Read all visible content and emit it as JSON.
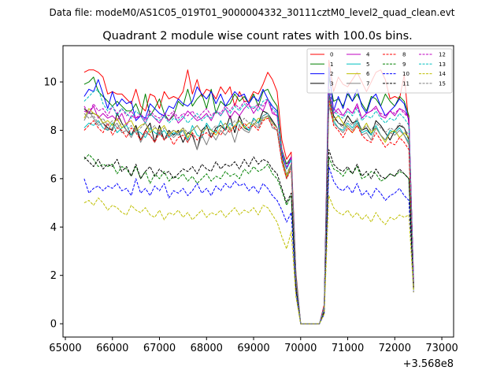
{
  "figure": {
    "suptitle": "Data file: modeM0/AS1C05_019T01_9000004332_30111cztM0_level2_quad_clean.evt",
    "title": "Quadrant 2 module wise count rates with 100.0s bins.",
    "offset_label": "+3.568e8"
  },
  "chart_data": {
    "type": "line",
    "title": "Quadrant 2 module wise count rates with 100.0s bins.",
    "xlabel": "",
    "ylabel": "",
    "x_offset": 356800000,
    "xlim": [
      64950,
      73250
    ],
    "ylim": [
      -0.55,
      11.5
    ],
    "xticks": [
      65000,
      66000,
      67000,
      68000,
      69000,
      70000,
      71000,
      72000,
      73000
    ],
    "xtick_labels": [
      "65000",
      "66000",
      "67000",
      "68000",
      "69000",
      "70000",
      "71000",
      "72000",
      "73000"
    ],
    "yticks": [
      0,
      2,
      4,
      6,
      8,
      10
    ],
    "ytick_labels": [
      "0",
      "2",
      "4",
      "6",
      "8",
      "10"
    ],
    "legend_position": "top-right",
    "x_start": 65400,
    "x_step": 100,
    "series": [
      {
        "name": "0",
        "color": "#ff0000",
        "dash": "solid",
        "values": [
          10.4,
          10.5,
          10.5,
          10.4,
          10.2,
          9.5,
          9.6,
          9.5,
          9.5,
          9.3,
          9.1,
          9.7,
          9.0,
          8.8,
          9.5,
          9.4,
          8.9,
          9.6,
          9.3,
          9.4,
          9.3,
          9.6,
          10.5,
          9.5,
          10.1,
          9.4,
          9.7,
          9.6,
          9.3,
          9.8,
          9.5,
          9.8,
          9.0,
          9.6,
          9.2,
          9.2,
          9.6,
          9.5,
          9.9,
          10.4,
          10.1,
          9.6,
          7.6,
          6.8,
          7.1,
          2.1,
          0,
          0,
          0,
          0,
          0,
          0.8,
          10.9,
          9.6,
          10.2,
          9.9,
          9.8,
          10.1,
          10.4,
          10.0,
          9.6,
          10.0,
          10.4,
          10.5,
          10.1,
          9.3,
          9.4,
          9.3,
          10.3,
          8.2,
          1.9
        ]
      },
      {
        "name": "1",
        "color": "#008000",
        "dash": "solid",
        "values": [
          9.9,
          10.0,
          10.2,
          9.6,
          9.4,
          9.2,
          9.0,
          9.2,
          9.0,
          8.8,
          8.8,
          9.1,
          8.6,
          9.5,
          8.6,
          8.9,
          9.3,
          8.7,
          8.4,
          8.6,
          9.2,
          9.0,
          9.7,
          9.0,
          9.3,
          9.5,
          8.9,
          9.7,
          8.7,
          9.2,
          9.0,
          9.1,
          9.5,
          9.2,
          9.4,
          9.1,
          9.5,
          9.0,
          9.6,
          9.7,
          9.3,
          9.0,
          7.2,
          6.6,
          6.9,
          2.0,
          0,
          0,
          0,
          0,
          0,
          0.7,
          10.2,
          9.2,
          9.3,
          9.0,
          9.5,
          9.2,
          9.5,
          9.1,
          8.8,
          9.4,
          9.3,
          9.0,
          9.5,
          9.2,
          9.0,
          9.4,
          9.2,
          8.6,
          1.7
        ]
      },
      {
        "name": "2",
        "color": "#0000ff",
        "dash": "solid",
        "values": [
          9.4,
          9.7,
          9.6,
          10.1,
          9.5,
          8.9,
          9.6,
          9.0,
          9.3,
          9.1,
          9.2,
          8.4,
          8.6,
          8.5,
          9.1,
          8.9,
          8.7,
          8.6,
          9.0,
          8.9,
          9.3,
          9.1,
          9.0,
          9.2,
          9.8,
          9.5,
          9.3,
          9.6,
          9.1,
          9.5,
          9.0,
          9.3,
          9.6,
          9.4,
          9.5,
          9.1,
          9.4,
          9.2,
          9.7,
          9.3,
          9.0,
          8.8,
          7.0,
          6.4,
          6.8,
          1.9,
          0,
          0,
          0,
          0,
          0,
          0.7,
          10.6,
          8.8,
          9.4,
          8.9,
          9.6,
          9.2,
          9.7,
          9.0,
          8.7,
          9.3,
          9.5,
          9.0,
          8.6,
          8.8,
          9.0,
          9.3,
          9.1,
          8.4,
          1.7
        ]
      },
      {
        "name": "3",
        "color": "#000000",
        "dash": "solid",
        "values": [
          8.9,
          8.7,
          8.7,
          8.6,
          8.3,
          8.1,
          8.0,
          8.7,
          8.3,
          8.0,
          7.8,
          8.2,
          7.6,
          8.0,
          8.3,
          7.5,
          8.2,
          7.6,
          8.0,
          7.8,
          8.0,
          7.5,
          7.9,
          7.8,
          7.2,
          8.0,
          8.2,
          7.7,
          8.1,
          8.2,
          8.0,
          8.6,
          7.9,
          8.6,
          8.1,
          8.0,
          8.5,
          8.3,
          8.8,
          8.7,
          8.4,
          8.1,
          6.9,
          6.1,
          6.6,
          1.7,
          0,
          0,
          0,
          0,
          0,
          0.6,
          9.5,
          8.6,
          8.3,
          8.2,
          8.6,
          8.3,
          8.4,
          8.0,
          8.1,
          7.8,
          8.4,
          8.2,
          7.9,
          7.6,
          8.0,
          8.2,
          8.1,
          7.6,
          1.6
        ]
      },
      {
        "name": "4",
        "color": "#bf00bf",
        "dash": "solid",
        "values": [
          8.8,
          8.7,
          9.0,
          8.5,
          8.7,
          8.5,
          8.6,
          8.4,
          8.7,
          8.2,
          8.6,
          8.5,
          8.6,
          8.3,
          8.7,
          8.5,
          8.3,
          8.6,
          8.4,
          8.7,
          8.3,
          8.5,
          8.8,
          8.6,
          8.4,
          8.5,
          8.7,
          8.4,
          8.8,
          8.6,
          8.9,
          8.5,
          8.8,
          8.6,
          8.9,
          9.1,
          8.7,
          9.0,
          8.8,
          9.3,
          8.7,
          8.6,
          7.1,
          6.4,
          6.9,
          1.9,
          0,
          0,
          0,
          0,
          0,
          0.7,
          9.6,
          8.7,
          8.9,
          8.6,
          8.9,
          8.7,
          9.1,
          8.5,
          8.7,
          8.8,
          9.0,
          8.6,
          8.5,
          8.8,
          8.6,
          8.9,
          8.8,
          8.5,
          1.7
        ]
      },
      {
        "name": "5",
        "color": "#00bfbf",
        "dash": "solid",
        "values": [
          8.1,
          8.3,
          8.2,
          8.4,
          8.1,
          8.0,
          8.3,
          7.9,
          8.1,
          8.2,
          7.8,
          8.0,
          7.9,
          7.7,
          8.1,
          7.9,
          7.8,
          8.0,
          7.7,
          7.9,
          7.8,
          8.0,
          7.6,
          8.2,
          7.8,
          7.7,
          8.3,
          8.0,
          7.9,
          8.4,
          8.0,
          8.3,
          8.1,
          8.4,
          8.2,
          8.0,
          8.5,
          8.3,
          8.6,
          8.7,
          8.3,
          8.1,
          6.8,
          6.0,
          6.5,
          1.8,
          0,
          0,
          0,
          0,
          0,
          0.6,
          9.4,
          8.4,
          8.1,
          8.0,
          8.3,
          8.1,
          8.4,
          7.9,
          8.0,
          7.8,
          8.2,
          7.8,
          7.6,
          8.0,
          7.9,
          8.1,
          7.8,
          7.5,
          1.6
        ]
      },
      {
        "name": "6",
        "color": "#bfbf00",
        "dash": "solid",
        "values": [
          8.5,
          8.9,
          8.7,
          8.6,
          8.3,
          8.4,
          8.2,
          8.5,
          8.1,
          8.3,
          8.4,
          8.0,
          8.2,
          8.3,
          7.9,
          8.1,
          8.0,
          8.2,
          7.8,
          8.0,
          7.9,
          8.1,
          7.7,
          8.0,
          8.2,
          7.9,
          8.1,
          8.0,
          7.8,
          8.1,
          8.3,
          8.0,
          8.2,
          8.4,
          8.1,
          8.3,
          8.2,
          8.5,
          8.4,
          8.6,
          8.3,
          8.1,
          6.8,
          6.1,
          6.6,
          1.8,
          0,
          0,
          0,
          0,
          0,
          0.6,
          9.2,
          8.4,
          8.6,
          8.3,
          8.1,
          7.9,
          8.2,
          8.0,
          8.3,
          7.9,
          8.1,
          7.8,
          7.5,
          7.9,
          8.0,
          7.7,
          7.9,
          7.7,
          1.5
        ]
      },
      {
        "name": "7",
        "color": "#808080",
        "dash": "solid",
        "values": [
          8.4,
          8.8,
          8.5,
          8.2,
          8.3,
          8.0,
          8.1,
          8.3,
          7.9,
          8.0,
          7.7,
          8.1,
          7.5,
          7.9,
          7.8,
          7.5,
          8.0,
          7.6,
          7.9,
          7.7,
          7.9,
          8.0,
          7.5,
          7.9,
          7.2,
          7.8,
          7.4,
          7.9,
          7.6,
          8.0,
          7.8,
          8.1,
          7.5,
          8.2,
          8.0,
          7.9,
          8.3,
          8.1,
          8.5,
          8.6,
          8.1,
          8.0,
          6.7,
          6.0,
          6.5,
          1.7,
          0,
          0,
          0,
          0,
          0,
          0.6,
          9.0,
          8.3,
          8.1,
          7.9,
          8.2,
          8.0,
          8.3,
          7.8,
          7.9,
          7.6,
          8.1,
          7.8,
          7.6,
          7.9,
          7.8,
          8.0,
          7.8,
          7.4,
          1.5
        ]
      },
      {
        "name": "8",
        "color": "#ff0000",
        "dash": "dashed",
        "values": [
          8.0,
          8.2,
          8.4,
          8.1,
          7.9,
          8.3,
          7.8,
          8.1,
          8.0,
          7.7,
          8.1,
          7.9,
          7.6,
          8.0,
          7.8,
          7.5,
          7.9,
          7.6,
          7.8,
          7.4,
          7.7,
          7.8,
          7.5,
          7.9,
          7.6,
          7.8,
          7.9,
          7.7,
          8.0,
          7.8,
          8.1,
          7.9,
          8.2,
          8.0,
          8.3,
          8.1,
          8.2,
          8.0,
          8.4,
          8.5,
          8.2,
          8.0,
          6.7,
          6.0,
          6.4,
          1.7,
          0,
          0,
          0,
          0,
          0,
          0.6,
          9.3,
          8.2,
          8.0,
          7.7,
          8.1,
          7.9,
          8.2,
          7.8,
          7.6,
          7.5,
          7.9,
          7.6,
          7.3,
          7.5,
          7.4,
          7.7,
          7.5,
          7.2,
          1.5
        ]
      },
      {
        "name": "9",
        "color": "#008000",
        "dash": "dashed",
        "values": [
          6.8,
          7.0,
          6.8,
          6.5,
          6.6,
          6.5,
          6.6,
          6.2,
          6.5,
          6.4,
          6.1,
          6.5,
          6.0,
          6.3,
          5.8,
          6.2,
          6.0,
          6.3,
          5.9,
          6.1,
          6.0,
          6.2,
          5.9,
          6.1,
          5.8,
          6.0,
          6.2,
          5.9,
          6.1,
          6.0,
          6.3,
          6.1,
          6.2,
          6.0,
          6.4,
          6.2,
          6.5,
          6.3,
          6.4,
          6.6,
          6.2,
          6.0,
          5.5,
          4.9,
          5.3,
          1.4,
          0,
          0,
          0,
          0,
          0,
          0.5,
          6.9,
          6.4,
          6.3,
          6.1,
          6.4,
          6.2,
          6.5,
          6.0,
          6.1,
          6.3,
          6.2,
          5.9,
          6.0,
          6.2,
          6.1,
          6.3,
          6.2,
          6.0,
          1.4
        ]
      },
      {
        "name": "10",
        "color": "#0000ff",
        "dash": "dashed",
        "values": [
          6.0,
          5.4,
          5.6,
          5.7,
          5.5,
          5.7,
          5.6,
          5.8,
          5.5,
          5.6,
          5.3,
          6.0,
          5.4,
          5.6,
          5.3,
          5.7,
          5.5,
          5.8,
          5.2,
          5.5,
          5.4,
          5.6,
          5.3,
          5.5,
          5.8,
          5.4,
          5.6,
          5.3,
          5.7,
          5.5,
          5.8,
          5.6,
          5.9,
          5.7,
          5.8,
          5.5,
          5.7,
          5.4,
          5.8,
          5.6,
          5.3,
          5.1,
          4.7,
          4.2,
          4.6,
          1.3,
          0,
          0,
          0,
          0,
          0,
          0.4,
          6.5,
          5.9,
          5.6,
          5.5,
          5.7,
          5.4,
          5.8,
          5.3,
          5.5,
          5.2,
          5.6,
          5.4,
          5.1,
          5.3,
          5.4,
          5.6,
          5.3,
          5.1,
          1.3
        ]
      },
      {
        "name": "11",
        "color": "#000000",
        "dash": "dashed",
        "values": [
          6.9,
          6.7,
          6.5,
          6.8,
          6.4,
          6.6,
          6.5,
          6.8,
          6.3,
          6.5,
          6.1,
          6.6,
          6.0,
          6.3,
          6.5,
          6.1,
          6.4,
          6.2,
          6.3,
          6.0,
          6.2,
          6.4,
          6.3,
          6.5,
          6.2,
          6.6,
          6.4,
          6.3,
          6.7,
          6.4,
          6.6,
          6.5,
          6.7,
          6.4,
          6.8,
          6.5,
          6.9,
          6.6,
          6.8,
          6.7,
          6.4,
          6.2,
          5.6,
          5.0,
          5.4,
          1.5,
          0,
          0,
          0,
          0,
          0,
          0.5,
          7.2,
          6.6,
          6.4,
          6.3,
          6.5,
          6.2,
          6.6,
          6.1,
          6.3,
          6.0,
          6.4,
          6.1,
          6.0,
          6.2,
          6.1,
          6.4,
          6.2,
          6.0,
          1.4
        ]
      },
      {
        "name": "12",
        "color": "#bf00bf",
        "dash": "dashed",
        "values": [
          9.0,
          8.7,
          9.1,
          8.8,
          8.9,
          8.6,
          9.0,
          8.7,
          8.9,
          8.6,
          8.8,
          8.5,
          8.7,
          8.4,
          8.8,
          8.6,
          8.5,
          8.7,
          8.6,
          8.8,
          8.5,
          8.7,
          8.6,
          8.8,
          8.5,
          8.7,
          8.9,
          8.6,
          8.8,
          8.7,
          9.0,
          8.8,
          9.1,
          8.9,
          9.2,
          9.0,
          8.9,
          9.1,
          9.0,
          9.3,
          8.8,
          8.6,
          7.2,
          6.5,
          6.9,
          1.9,
          0,
          0,
          0,
          0,
          0,
          0.7,
          9.8,
          8.9,
          8.7,
          8.6,
          8.9,
          8.7,
          9.0,
          8.5,
          8.7,
          8.8,
          8.9,
          8.7,
          8.6,
          8.8,
          8.7,
          8.9,
          8.7,
          8.5,
          1.8
        ]
      },
      {
        "name": "13",
        "color": "#00bfbf",
        "dash": "dashed",
        "values": [
          9.2,
          9.4,
          9.6,
          9.7,
          9.1,
          8.8,
          9.0,
          8.6,
          8.9,
          8.7,
          8.5,
          8.8,
          8.6,
          8.3,
          8.7,
          8.5,
          8.4,
          8.6,
          8.3,
          8.5,
          8.4,
          8.6,
          8.3,
          8.5,
          8.7,
          8.4,
          8.6,
          8.5,
          8.8,
          8.6,
          8.9,
          8.7,
          9.0,
          8.8,
          9.1,
          8.9,
          9.0,
          8.8,
          9.2,
          9.3,
          8.9,
          8.7,
          7.1,
          6.4,
          6.8,
          1.9,
          0,
          0,
          0,
          0,
          0,
          0.7,
          9.7,
          8.8,
          8.6,
          8.5,
          8.8,
          8.6,
          8.9,
          8.4,
          8.6,
          8.5,
          8.8,
          8.5,
          8.3,
          8.5,
          8.4,
          8.7,
          8.5,
          8.2,
          1.8
        ]
      },
      {
        "name": "14",
        "color": "#bfbf00",
        "dash": "dashed",
        "values": [
          5.0,
          5.1,
          4.9,
          5.2,
          5.0,
          4.7,
          4.9,
          4.8,
          4.6,
          4.5,
          4.9,
          4.7,
          4.6,
          4.8,
          4.5,
          4.4,
          4.7,
          4.3,
          4.6,
          4.5,
          4.7,
          4.4,
          4.6,
          4.3,
          4.5,
          4.7,
          4.4,
          4.6,
          4.5,
          4.7,
          4.4,
          4.6,
          4.8,
          4.5,
          4.7,
          4.6,
          4.8,
          4.5,
          4.9,
          4.8,
          4.5,
          4.2,
          3.6,
          3.1,
          3.8,
          1.1,
          0,
          0,
          0,
          0,
          0,
          0.4,
          5.3,
          4.8,
          4.6,
          4.5,
          4.7,
          4.4,
          4.6,
          4.3,
          4.5,
          4.2,
          4.6,
          4.3,
          4.1,
          4.4,
          4.3,
          4.5,
          4.4,
          4.5,
          1.3
        ]
      },
      {
        "name": "15",
        "color": "#808080",
        "dash": "dashed",
        "values": [
          8.7,
          8.5,
          8.6,
          8.3,
          8.5,
          8.2,
          8.4,
          8.1,
          8.3,
          8.0,
          8.2,
          7.9,
          8.1,
          8.3,
          8.0,
          8.2,
          7.8,
          8.1,
          7.9,
          8.0,
          7.8,
          8.1,
          7.9,
          8.0,
          8.2,
          7.9,
          8.1,
          8.0,
          8.2,
          8.1,
          8.3,
          8.1,
          8.4,
          8.2,
          8.5,
          8.3,
          8.4,
          8.2,
          8.6,
          8.7,
          8.3,
          8.1,
          6.9,
          6.2,
          6.6,
          1.8,
          0,
          0,
          0,
          0,
          0,
          0.6,
          9.4,
          8.5,
          8.3,
          8.1,
          8.4,
          8.2,
          8.5,
          8.0,
          8.2,
          8.0,
          8.3,
          8.1,
          7.9,
          8.1,
          8.0,
          8.3,
          8.1,
          7.8,
          1.6
        ]
      }
    ]
  }
}
